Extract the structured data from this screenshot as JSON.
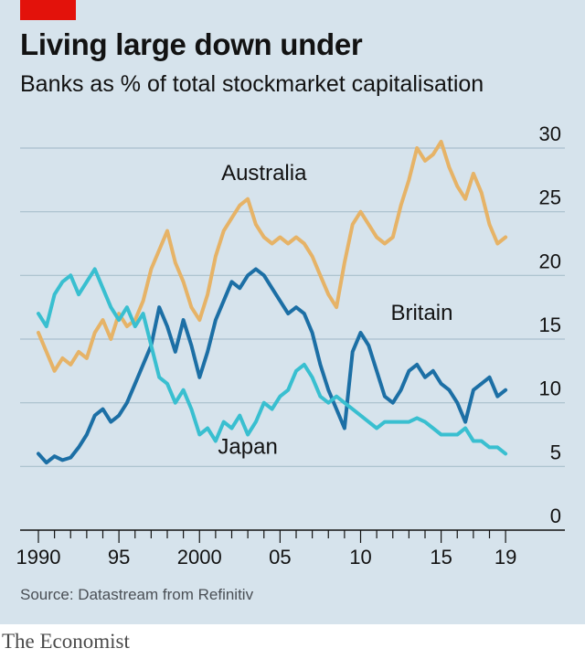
{
  "header": {
    "title": "Living large down under",
    "subtitle": "Banks as % of total stockmarket capitalisation"
  },
  "footer": {
    "source": "Source: Datastream from Refinitiv",
    "brand": "The Economist"
  },
  "colors": {
    "background": "#d6e3ec",
    "accent_tag": "#e3120b",
    "gridline": "#a9bfcd",
    "axis": "#121212",
    "australia": "#e6b367",
    "britain": "#1c6fa5",
    "japan": "#39bfd0"
  },
  "chart_data": {
    "type": "line",
    "title": "Living large down under",
    "subtitle": "Banks as % of total stockmarket capitalisation",
    "xlabel": "",
    "ylabel": "",
    "xlim": [
      1989.5,
      2019.5
    ],
    "ylim": [
      0,
      30
    ],
    "grid": true,
    "y_axis_side": "right",
    "y_ticks": [
      0,
      5,
      10,
      15,
      20,
      25,
      30
    ],
    "x_tick_labels": [
      {
        "x": 1990,
        "label": "1990"
      },
      {
        "x": 1995,
        "label": "95"
      },
      {
        "x": 2000,
        "label": "2000"
      },
      {
        "x": 2005,
        "label": "05"
      },
      {
        "x": 2010,
        "label": "10"
      },
      {
        "x": 2015,
        "label": "15"
      },
      {
        "x": 2019,
        "label": "19"
      }
    ],
    "series": [
      {
        "name": "Australia",
        "color": "#e6b367",
        "x": [
          1990,
          1990.5,
          1991,
          1991.5,
          1992,
          1992.5,
          1993,
          1993.5,
          1994,
          1994.5,
          1995,
          1995.5,
          1996,
          1996.5,
          1997,
          1997.5,
          1998,
          1998.5,
          1999,
          1999.5,
          2000,
          2000.5,
          2001,
          2001.5,
          2002,
          2002.5,
          2003,
          2003.5,
          2004,
          2004.5,
          2005,
          2005.5,
          2006,
          2006.5,
          2007,
          2007.5,
          2008,
          2008.5,
          2009,
          2009.5,
          2010,
          2010.5,
          2011,
          2011.5,
          2012,
          2012.5,
          2013,
          2013.5,
          2014,
          2014.5,
          2015,
          2015.5,
          2016,
          2016.5,
          2017,
          2017.5,
          2018,
          2018.5,
          2019
        ],
        "values": [
          15.5,
          14,
          12.5,
          13.5,
          13,
          14,
          13.5,
          15.5,
          16.5,
          15,
          17,
          16,
          16.5,
          18,
          20.5,
          22,
          23.5,
          21,
          19.5,
          17.5,
          16.5,
          18.5,
          21.5,
          23.5,
          24.5,
          25.5,
          26,
          24,
          23,
          22.5,
          23,
          22.5,
          23,
          22.5,
          21.5,
          20,
          18.5,
          17.5,
          21,
          24,
          25,
          24,
          23,
          22.5,
          23,
          25.5,
          27.5,
          30,
          29,
          29.5,
          30.5,
          28.5,
          27,
          26,
          28,
          26.5,
          24,
          22.5,
          23
        ]
      },
      {
        "name": "Britain",
        "color": "#1c6fa5",
        "x": [
          1990,
          1990.5,
          1991,
          1991.5,
          1992,
          1992.5,
          1993,
          1993.5,
          1994,
          1994.5,
          1995,
          1995.5,
          1996,
          1996.5,
          1997,
          1997.5,
          1998,
          1998.5,
          1999,
          1999.5,
          2000,
          2000.5,
          2001,
          2001.5,
          2002,
          2002.5,
          2003,
          2003.5,
          2004,
          2004.5,
          2005,
          2005.5,
          2006,
          2006.5,
          2007,
          2007.5,
          2008,
          2008.5,
          2009,
          2009.5,
          2010,
          2010.5,
          2011,
          2011.5,
          2012,
          2012.5,
          2013,
          2013.5,
          2014,
          2014.5,
          2015,
          2015.5,
          2016,
          2016.5,
          2017,
          2017.5,
          2018,
          2018.5,
          2019
        ],
        "values": [
          6,
          5.3,
          5.8,
          5.5,
          5.7,
          6.5,
          7.5,
          9,
          9.5,
          8.5,
          9,
          10,
          11.5,
          13,
          14.5,
          17.5,
          16,
          14,
          16.5,
          14.5,
          12,
          14,
          16.5,
          18,
          19.5,
          19,
          20,
          20.5,
          20,
          19,
          18,
          17,
          17.5,
          17,
          15.5,
          13,
          11,
          9.5,
          8,
          14,
          15.5,
          14.5,
          12.5,
          10.5,
          10,
          11,
          12.5,
          13,
          12,
          12.5,
          11.5,
          11,
          10,
          8.5,
          11,
          11.5,
          12,
          10.5,
          11
        ]
      },
      {
        "name": "Japan",
        "color": "#39bfd0",
        "x": [
          1990,
          1990.5,
          1991,
          1991.5,
          1992,
          1992.5,
          1993,
          1993.5,
          1994,
          1994.5,
          1995,
          1995.5,
          1996,
          1996.5,
          1997,
          1997.5,
          1998,
          1998.5,
          1999,
          1999.5,
          2000,
          2000.5,
          2001,
          2001.5,
          2002,
          2002.5,
          2003,
          2003.5,
          2004,
          2004.5,
          2005,
          2005.5,
          2006,
          2006.5,
          2007,
          2007.5,
          2008,
          2008.5,
          2009,
          2009.5,
          2010,
          2010.5,
          2011,
          2011.5,
          2012,
          2012.5,
          2013,
          2013.5,
          2014,
          2014.5,
          2015,
          2015.5,
          2016,
          2016.5,
          2017,
          2017.5,
          2018,
          2018.5,
          2019
        ],
        "values": [
          17,
          16,
          18.5,
          19.5,
          20,
          18.5,
          19.5,
          20.5,
          19,
          17.5,
          16.5,
          17.5,
          16,
          17,
          14.5,
          12,
          11.5,
          10,
          11,
          9.5,
          7.5,
          8,
          7,
          8.5,
          8,
          9,
          7.5,
          8.5,
          10,
          9.5,
          10.5,
          11,
          12.5,
          13,
          12,
          10.5,
          10,
          10.5,
          10,
          9.5,
          9,
          8.5,
          8,
          8.5,
          8.5,
          8.5,
          8.5,
          8.8,
          8.5,
          8,
          7.5,
          7.5,
          7.5,
          8,
          7,
          7,
          6.5,
          6.5,
          6
        ]
      }
    ],
    "annotations": [
      {
        "text": "Australia",
        "series": "Australia"
      },
      {
        "text": "Britain",
        "series": "Britain"
      },
      {
        "text": "Japan",
        "series": "Japan"
      }
    ]
  }
}
